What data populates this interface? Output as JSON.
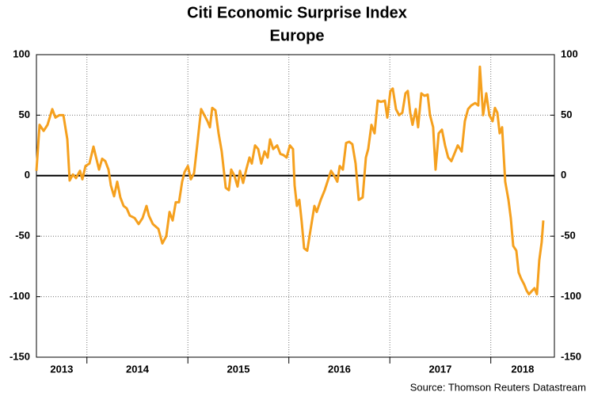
{
  "chart_data": {
    "type": "line",
    "title": "Citi Economic Surprise Index",
    "subtitle": "Europe",
    "source": "Source: Thomson Reuters Datastream",
    "year_labels": [
      "2013",
      "2014",
      "2015",
      "2016",
      "2017",
      "2018"
    ],
    "xlim": [
      2013.5,
      2018.63
    ],
    "xticks": [
      2014,
      2015,
      2016,
      2017,
      2018
    ],
    "ylim": [
      -150,
      100
    ],
    "yticks": [
      -150,
      -100,
      -50,
      0,
      50,
      100
    ],
    "grid": true,
    "series": [
      {
        "name": "Citi Economic Surprise Index Europe",
        "color": "#f5a01e",
        "x": [
          2013.5,
          2013.531,
          2013.571,
          2013.61,
          2013.657,
          2013.688,
          2013.727,
          2013.767,
          2013.806,
          2013.829,
          2013.861,
          2013.892,
          2013.931,
          2013.955,
          2013.986,
          2014.025,
          2014.065,
          2014.088,
          2014.12,
          2014.151,
          2014.182,
          2014.214,
          2014.237,
          2014.269,
          2014.3,
          2014.331,
          2014.363,
          2014.394,
          2014.425,
          2014.473,
          2014.512,
          2014.551,
          2014.59,
          2014.614,
          2014.653,
          2014.708,
          2014.747,
          2014.786,
          2014.818,
          2014.849,
          2014.88,
          2014.912,
          2014.943,
          2014.967,
          2015.0,
          2015.029,
          2015.061,
          2015.092,
          2015.131,
          2015.163,
          2015.194,
          2015.218,
          2015.241,
          2015.273,
          2015.304,
          2015.335,
          2015.375,
          2015.406,
          2015.429,
          2015.461,
          2015.492,
          2015.516,
          2015.547,
          2015.578,
          2015.61,
          2015.633,
          2015.665,
          2015.696,
          2015.727,
          2015.759,
          2015.79,
          2015.814,
          2015.845,
          2015.884,
          2015.916,
          2015.947,
          2015.978,
          2016.01,
          2016.041,
          2016.057,
          2016.08,
          2016.104,
          2016.127,
          2016.151,
          2016.182,
          2016.22,
          2016.253,
          2016.276,
          2016.316,
          2016.355,
          2016.394,
          2016.418,
          2016.449,
          2016.48,
          2016.504,
          2016.535,
          2016.567,
          2016.598,
          2016.629,
          2016.661,
          2016.692,
          2016.731,
          2016.763,
          2016.786,
          2016.818,
          2016.849,
          2016.88,
          2016.912,
          2016.951,
          2016.975,
          2017.006,
          2017.029,
          2017.061,
          2017.092,
          2017.124,
          2017.155,
          2017.178,
          2017.202,
          2017.225,
          2017.257,
          2017.28,
          2017.312,
          2017.343,
          2017.375,
          2017.398,
          2017.429,
          2017.453,
          2017.484,
          2017.516,
          2017.547,
          2017.578,
          2017.61,
          2017.649,
          2017.673,
          2017.712,
          2017.743,
          2017.775,
          2017.806,
          2017.845,
          2017.876,
          2017.892,
          2017.924,
          2017.955,
          2017.986,
          2018.018,
          2018.041,
          2018.065,
          2018.088,
          2018.112,
          2018.143,
          2018.175,
          2018.198,
          2018.222,
          2018.253,
          2018.276,
          2018.3,
          2018.331,
          2018.355,
          2018.378,
          2018.41,
          2018.433,
          2018.457,
          2018.48,
          2018.504,
          2018.52
        ],
        "values": [
          4,
          42,
          37,
          42,
          55,
          48,
          50,
          50,
          30,
          -4,
          1,
          -2,
          4,
          -3,
          8,
          10,
          24,
          16,
          5,
          14,
          12,
          5,
          -8,
          -17,
          -5,
          -18,
          -25,
          -27,
          -33,
          -35,
          -40,
          -35,
          -25,
          -33,
          -40,
          -44,
          -56,
          -50,
          -30,
          -37,
          -22,
          -22,
          -5,
          3,
          8,
          -3,
          2,
          25,
          55,
          50,
          45,
          40,
          56,
          54,
          35,
          20,
          -10,
          -12,
          5,
          0,
          -9,
          4,
          -6,
          5,
          15,
          10,
          25,
          22,
          10,
          20,
          15,
          30,
          22,
          25,
          18,
          17,
          15,
          25,
          22,
          -8,
          -25,
          -20,
          -38,
          -60,
          -62,
          -42,
          -25,
          -30,
          -20,
          -12,
          -2,
          4,
          0,
          -5,
          8,
          5,
          27,
          28,
          26,
          10,
          -20,
          -18,
          15,
          22,
          42,
          35,
          62,
          61,
          62,
          48,
          70,
          72,
          55,
          50,
          52,
          68,
          70,
          52,
          42,
          55,
          40,
          68,
          66,
          67,
          50,
          40,
          5,
          35,
          38,
          25,
          15,
          12,
          20,
          25,
          20,
          45,
          55,
          58,
          60,
          58,
          90,
          50,
          68,
          50,
          45,
          56,
          52,
          35,
          40,
          -5,
          -20,
          -35,
          -58,
          -62,
          -80,
          -85,
          -90,
          -95,
          -98,
          -95,
          -93,
          -98,
          -70,
          -55,
          -37
        ]
      }
    ]
  }
}
